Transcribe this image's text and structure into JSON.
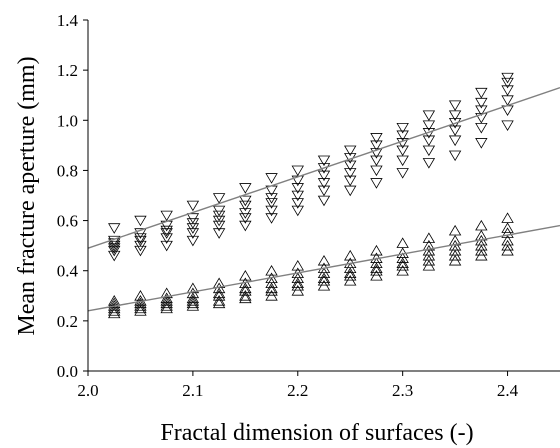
{
  "chart_data": {
    "type": "scatter",
    "title": "",
    "xlabel": "Fractal dimension of surfaces (-)",
    "ylabel": "Mean fracture aperture (mm)",
    "xlim": [
      2.0,
      2.45
    ],
    "ylim": [
      0.0,
      1.4
    ],
    "xticks": [
      "2.0",
      "2.1",
      "2.2",
      "2.3",
      "2.4"
    ],
    "yticks": [
      "0.0",
      "0.2",
      "0.4",
      "0.6",
      "0.8",
      "1.0",
      "1.2",
      "1.4"
    ],
    "grid": false,
    "series": [
      {
        "marker": "triangle-down",
        "points": [
          [
            2.025,
            0.46
          ],
          [
            2.025,
            0.48
          ],
          [
            2.025,
            0.49
          ],
          [
            2.025,
            0.5
          ],
          [
            2.025,
            0.51
          ],
          [
            2.025,
            0.52
          ],
          [
            2.025,
            0.57
          ],
          [
            2.05,
            0.48
          ],
          [
            2.05,
            0.5
          ],
          [
            2.05,
            0.52
          ],
          [
            2.05,
            0.53
          ],
          [
            2.05,
            0.55
          ],
          [
            2.05,
            0.6
          ],
          [
            2.075,
            0.5
          ],
          [
            2.075,
            0.53
          ],
          [
            2.075,
            0.55
          ],
          [
            2.075,
            0.56
          ],
          [
            2.075,
            0.58
          ],
          [
            2.075,
            0.62
          ],
          [
            2.1,
            0.52
          ],
          [
            2.1,
            0.55
          ],
          [
            2.1,
            0.57
          ],
          [
            2.1,
            0.59
          ],
          [
            2.1,
            0.61
          ],
          [
            2.1,
            0.66
          ],
          [
            2.125,
            0.55
          ],
          [
            2.125,
            0.58
          ],
          [
            2.125,
            0.6
          ],
          [
            2.125,
            0.62
          ],
          [
            2.125,
            0.64
          ],
          [
            2.125,
            0.69
          ],
          [
            2.15,
            0.58
          ],
          [
            2.15,
            0.61
          ],
          [
            2.15,
            0.63
          ],
          [
            2.15,
            0.66
          ],
          [
            2.15,
            0.68
          ],
          [
            2.15,
            0.73
          ],
          [
            2.175,
            0.61
          ],
          [
            2.175,
            0.64
          ],
          [
            2.175,
            0.67
          ],
          [
            2.175,
            0.69
          ],
          [
            2.175,
            0.72
          ],
          [
            2.175,
            0.77
          ],
          [
            2.2,
            0.64
          ],
          [
            2.2,
            0.67
          ],
          [
            2.2,
            0.7
          ],
          [
            2.2,
            0.73
          ],
          [
            2.2,
            0.76
          ],
          [
            2.2,
            0.8
          ],
          [
            2.225,
            0.68
          ],
          [
            2.225,
            0.72
          ],
          [
            2.225,
            0.75
          ],
          [
            2.225,
            0.78
          ],
          [
            2.225,
            0.81
          ],
          [
            2.225,
            0.84
          ],
          [
            2.25,
            0.72
          ],
          [
            2.25,
            0.76
          ],
          [
            2.25,
            0.79
          ],
          [
            2.25,
            0.82
          ],
          [
            2.25,
            0.85
          ],
          [
            2.25,
            0.88
          ],
          [
            2.275,
            0.75
          ],
          [
            2.275,
            0.8
          ],
          [
            2.275,
            0.84
          ],
          [
            2.275,
            0.87
          ],
          [
            2.275,
            0.9
          ],
          [
            2.275,
            0.93
          ],
          [
            2.3,
            0.79
          ],
          [
            2.3,
            0.84
          ],
          [
            2.3,
            0.88
          ],
          [
            2.3,
            0.91
          ],
          [
            2.3,
            0.94
          ],
          [
            2.3,
            0.97
          ],
          [
            2.325,
            0.83
          ],
          [
            2.325,
            0.88
          ],
          [
            2.325,
            0.92
          ],
          [
            2.325,
            0.95
          ],
          [
            2.325,
            0.98
          ],
          [
            2.325,
            1.02
          ],
          [
            2.35,
            0.86
          ],
          [
            2.35,
            0.92
          ],
          [
            2.35,
            0.96
          ],
          [
            2.35,
            0.99
          ],
          [
            2.35,
            1.02
          ],
          [
            2.35,
            1.06
          ],
          [
            2.375,
            0.91
          ],
          [
            2.375,
            0.97
          ],
          [
            2.375,
            1.01
          ],
          [
            2.375,
            1.04
          ],
          [
            2.375,
            1.07
          ],
          [
            2.375,
            1.11
          ],
          [
            2.4,
            0.98
          ],
          [
            2.4,
            1.04
          ],
          [
            2.4,
            1.08
          ],
          [
            2.4,
            1.12
          ],
          [
            2.4,
            1.15
          ],
          [
            2.4,
            1.17
          ]
        ]
      },
      {
        "marker": "triangle-up",
        "points": [
          [
            2.025,
            0.23
          ],
          [
            2.025,
            0.24
          ],
          [
            2.025,
            0.25
          ],
          [
            2.025,
            0.26
          ],
          [
            2.025,
            0.27
          ],
          [
            2.025,
            0.28
          ],
          [
            2.05,
            0.24
          ],
          [
            2.05,
            0.25
          ],
          [
            2.05,
            0.26
          ],
          [
            2.05,
            0.27
          ],
          [
            2.05,
            0.28
          ],
          [
            2.05,
            0.3
          ],
          [
            2.075,
            0.25
          ],
          [
            2.075,
            0.26
          ],
          [
            2.075,
            0.27
          ],
          [
            2.075,
            0.28
          ],
          [
            2.075,
            0.29
          ],
          [
            2.075,
            0.31
          ],
          [
            2.1,
            0.26
          ],
          [
            2.1,
            0.27
          ],
          [
            2.1,
            0.28
          ],
          [
            2.1,
            0.29
          ],
          [
            2.1,
            0.31
          ],
          [
            2.1,
            0.33
          ],
          [
            2.125,
            0.27
          ],
          [
            2.125,
            0.28
          ],
          [
            2.125,
            0.3
          ],
          [
            2.125,
            0.31
          ],
          [
            2.125,
            0.33
          ],
          [
            2.125,
            0.35
          ],
          [
            2.15,
            0.29
          ],
          [
            2.15,
            0.3
          ],
          [
            2.15,
            0.32
          ],
          [
            2.15,
            0.33
          ],
          [
            2.15,
            0.35
          ],
          [
            2.15,
            0.38
          ],
          [
            2.175,
            0.3
          ],
          [
            2.175,
            0.32
          ],
          [
            2.175,
            0.33
          ],
          [
            2.175,
            0.35
          ],
          [
            2.175,
            0.37
          ],
          [
            2.175,
            0.4
          ],
          [
            2.2,
            0.32
          ],
          [
            2.2,
            0.34
          ],
          [
            2.2,
            0.35
          ],
          [
            2.2,
            0.37
          ],
          [
            2.2,
            0.39
          ],
          [
            2.2,
            0.42
          ],
          [
            2.225,
            0.34
          ],
          [
            2.225,
            0.36
          ],
          [
            2.225,
            0.37
          ],
          [
            2.225,
            0.39
          ],
          [
            2.225,
            0.41
          ],
          [
            2.225,
            0.44
          ],
          [
            2.25,
            0.36
          ],
          [
            2.25,
            0.38
          ],
          [
            2.25,
            0.39
          ],
          [
            2.25,
            0.41
          ],
          [
            2.25,
            0.43
          ],
          [
            2.25,
            0.46
          ],
          [
            2.275,
            0.38
          ],
          [
            2.275,
            0.4
          ],
          [
            2.275,
            0.41
          ],
          [
            2.275,
            0.43
          ],
          [
            2.275,
            0.45
          ],
          [
            2.275,
            0.48
          ],
          [
            2.3,
            0.4
          ],
          [
            2.3,
            0.42
          ],
          [
            2.3,
            0.43
          ],
          [
            2.3,
            0.45
          ],
          [
            2.3,
            0.47
          ],
          [
            2.3,
            0.51
          ],
          [
            2.325,
            0.42
          ],
          [
            2.325,
            0.44
          ],
          [
            2.325,
            0.46
          ],
          [
            2.325,
            0.48
          ],
          [
            2.325,
            0.5
          ],
          [
            2.325,
            0.53
          ],
          [
            2.35,
            0.44
          ],
          [
            2.35,
            0.46
          ],
          [
            2.35,
            0.48
          ],
          [
            2.35,
            0.5
          ],
          [
            2.35,
            0.52
          ],
          [
            2.35,
            0.56
          ],
          [
            2.375,
            0.46
          ],
          [
            2.375,
            0.48
          ],
          [
            2.375,
            0.5
          ],
          [
            2.375,
            0.52
          ],
          [
            2.375,
            0.54
          ],
          [
            2.375,
            0.58
          ],
          [
            2.4,
            0.48
          ],
          [
            2.4,
            0.5
          ],
          [
            2.4,
            0.52
          ],
          [
            2.4,
            0.55
          ],
          [
            2.4,
            0.57
          ],
          [
            2.4,
            0.61
          ]
        ]
      }
    ],
    "fit_lines": [
      {
        "x": [
          2.0,
          2.45
        ],
        "y": [
          0.49,
          1.13
        ]
      },
      {
        "x": [
          2.0,
          2.45
        ],
        "y": [
          0.24,
          0.58
        ]
      }
    ],
    "line_color": "#808080",
    "marker_color": "#000000"
  }
}
